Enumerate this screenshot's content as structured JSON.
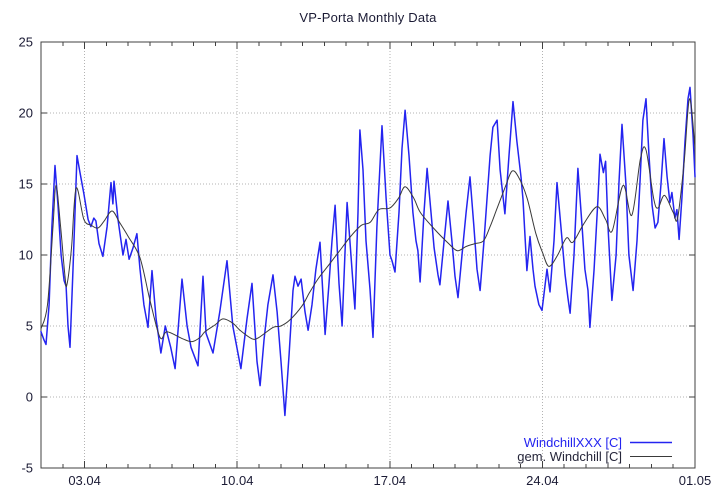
{
  "chart_data": {
    "type": "line",
    "title": "VP-Porta Monthly Data",
    "xlabel": "",
    "ylabel": "",
    "ylim": [
      -5,
      25
    ],
    "xlim_days": [
      0,
      30
    ],
    "grid": true,
    "legend_position": "bottom-right-inside",
    "colors": {
      "text": "#1b1b35",
      "axis": "#404040",
      "grid": "#b3b3b3",
      "background": "#ffffff"
    },
    "y_ticks": [
      {
        "value": -5,
        "label": "-5"
      },
      {
        "value": 0,
        "label": "0"
      },
      {
        "value": 5,
        "label": "5"
      },
      {
        "value": 10,
        "label": "10"
      },
      {
        "value": 15,
        "label": "15"
      },
      {
        "value": 20,
        "label": "20"
      },
      {
        "value": 25,
        "label": "25"
      }
    ],
    "x_ticks": [
      {
        "day": 2,
        "label": "03.04"
      },
      {
        "day": 9,
        "label": "10.04"
      },
      {
        "day": 16,
        "label": "17.04"
      },
      {
        "day": 23,
        "label": "24.04"
      },
      {
        "day": 30,
        "label": "01.05"
      }
    ],
    "x_minor_tick_every_days": 1,
    "series": [
      {
        "name": "WindchillXXX [C]",
        "color": "#2424f0",
        "label_color": "#2424f0",
        "width": 1.5,
        "smooth": false,
        "points": [
          [
            0,
            4.6
          ],
          [
            0.14,
            4.0
          ],
          [
            0.23,
            3.7
          ],
          [
            0.37,
            6.5
          ],
          [
            0.5,
            12.0
          ],
          [
            0.64,
            16.3
          ],
          [
            0.78,
            13.5
          ],
          [
            0.92,
            10.0
          ],
          [
            1.06,
            8.2
          ],
          [
            1.15,
            7.8
          ],
          [
            1.24,
            5.0
          ],
          [
            1.33,
            3.5
          ],
          [
            1.47,
            9.0
          ],
          [
            1.65,
            17.0
          ],
          [
            1.79,
            15.8
          ],
          [
            1.97,
            14.3
          ],
          [
            2.16,
            12.5
          ],
          [
            2.29,
            12.0
          ],
          [
            2.42,
            12.6
          ],
          [
            2.52,
            12.4
          ],
          [
            2.66,
            10.8
          ],
          [
            2.84,
            9.9
          ],
          [
            3.03,
            12.0
          ],
          [
            3.21,
            15.1
          ],
          [
            3.3,
            13.6
          ],
          [
            3.35,
            15.2
          ],
          [
            3.53,
            12.5
          ],
          [
            3.76,
            10.0
          ],
          [
            3.9,
            11.1
          ],
          [
            4.04,
            9.7
          ],
          [
            4.22,
            10.5
          ],
          [
            4.4,
            11.5
          ],
          [
            4.54,
            9.0
          ],
          [
            4.72,
            6.5
          ],
          [
            4.91,
            4.9
          ],
          [
            5.09,
            8.9
          ],
          [
            5.28,
            5.5
          ],
          [
            5.5,
            3.1
          ],
          [
            5.7,
            5.0
          ],
          [
            5.95,
            3.5
          ],
          [
            6.15,
            2.0
          ],
          [
            6.47,
            8.3
          ],
          [
            6.7,
            5.0
          ],
          [
            6.88,
            3.5
          ],
          [
            7.2,
            2.2
          ],
          [
            7.43,
            8.5
          ],
          [
            7.57,
            4.5
          ],
          [
            7.89,
            3.1
          ],
          [
            8.2,
            6.0
          ],
          [
            8.53,
            9.6
          ],
          [
            8.8,
            5.0
          ],
          [
            9.17,
            2.0
          ],
          [
            9.45,
            5.5
          ],
          [
            9.68,
            8.0
          ],
          [
            9.91,
            2.5
          ],
          [
            10.05,
            0.8
          ],
          [
            10.23,
            4.0
          ],
          [
            10.41,
            6.5
          ],
          [
            10.64,
            8.6
          ],
          [
            10.83,
            6.0
          ],
          [
            11.01,
            2.5
          ],
          [
            11.19,
            -1.3
          ],
          [
            11.38,
            3.0
          ],
          [
            11.56,
            7.5
          ],
          [
            11.65,
            8.5
          ],
          [
            11.79,
            7.8
          ],
          [
            11.93,
            8.3
          ],
          [
            12.11,
            6.0
          ],
          [
            12.25,
            4.7
          ],
          [
            12.43,
            6.5
          ],
          [
            12.61,
            9.0
          ],
          [
            12.8,
            10.9
          ],
          [
            12.94,
            7.0
          ],
          [
            13.03,
            4.4
          ],
          [
            13.21,
            8.0
          ],
          [
            13.35,
            11.0
          ],
          [
            13.49,
            13.5
          ],
          [
            13.67,
            8.0
          ],
          [
            13.81,
            5.0
          ],
          [
            13.94,
            10.0
          ],
          [
            14.04,
            13.7
          ],
          [
            14.17,
            11.0
          ],
          [
            14.31,
            8.0
          ],
          [
            14.4,
            6.2
          ],
          [
            14.54,
            13.0
          ],
          [
            14.63,
            18.8
          ],
          [
            14.77,
            16.0
          ],
          [
            14.91,
            11.0
          ],
          [
            15.09,
            7.6
          ],
          [
            15.23,
            4.2
          ],
          [
            15.41,
            12.0
          ],
          [
            15.64,
            19.1
          ],
          [
            15.83,
            14.0
          ],
          [
            16.01,
            10.0
          ],
          [
            16.1,
            9.6
          ],
          [
            16.24,
            8.8
          ],
          [
            16.42,
            13.0
          ],
          [
            16.56,
            17.5
          ],
          [
            16.7,
            20.2
          ],
          [
            16.88,
            17.0
          ],
          [
            17.06,
            13.0
          ],
          [
            17.2,
            11.0
          ],
          [
            17.29,
            10.3
          ],
          [
            17.39,
            8.1
          ],
          [
            17.57,
            13.0
          ],
          [
            17.71,
            16.1
          ],
          [
            17.89,
            13.0
          ],
          [
            18.03,
            10.5
          ],
          [
            18.21,
            8.6
          ],
          [
            18.3,
            7.9
          ],
          [
            18.49,
            11.0
          ],
          [
            18.67,
            13.8
          ],
          [
            18.85,
            11.0
          ],
          [
            18.99,
            8.5
          ],
          [
            19.13,
            7.0
          ],
          [
            19.31,
            10.0
          ],
          [
            19.5,
            13.0
          ],
          [
            19.68,
            15.5
          ],
          [
            19.86,
            12.0
          ],
          [
            20.0,
            9.0
          ],
          [
            20.14,
            7.5
          ],
          [
            20.32,
            11.0
          ],
          [
            20.6,
            17.0
          ],
          [
            20.73,
            19.0
          ],
          [
            20.92,
            19.5
          ],
          [
            21.06,
            16.0
          ],
          [
            21.28,
            12.9
          ],
          [
            21.47,
            17.0
          ],
          [
            21.65,
            20.8
          ],
          [
            21.83,
            18.0
          ],
          [
            22.02,
            15.5
          ],
          [
            22.11,
            13.9
          ],
          [
            22.29,
            8.9
          ],
          [
            22.43,
            11.3
          ],
          [
            22.57,
            9.0
          ],
          [
            22.66,
            7.8
          ],
          [
            22.84,
            6.5
          ],
          [
            22.98,
            6.1
          ],
          [
            23.21,
            9.0
          ],
          [
            23.35,
            7.4
          ],
          [
            23.53,
            11.0
          ],
          [
            23.67,
            15.1
          ],
          [
            23.85,
            12.0
          ],
          [
            24.04,
            8.6
          ],
          [
            24.17,
            7.0
          ],
          [
            24.27,
            5.9
          ],
          [
            24.45,
            10.0
          ],
          [
            24.63,
            16.1
          ],
          [
            24.82,
            12.0
          ],
          [
            24.95,
            9.0
          ],
          [
            25.09,
            7.5
          ],
          [
            25.18,
            4.9
          ],
          [
            25.37,
            9.0
          ],
          [
            25.55,
            14.0
          ],
          [
            25.64,
            17.1
          ],
          [
            25.8,
            15.8
          ],
          [
            25.9,
            16.6
          ],
          [
            26.01,
            12.0
          ],
          [
            26.19,
            6.8
          ],
          [
            26.38,
            10.0
          ],
          [
            26.51,
            15.0
          ],
          [
            26.65,
            19.2
          ],
          [
            26.83,
            15.0
          ],
          [
            26.97,
            10.0
          ],
          [
            27.16,
            7.5
          ],
          [
            27.34,
            11.0
          ],
          [
            27.48,
            15.3
          ],
          [
            27.61,
            19.5
          ],
          [
            27.75,
            21.0
          ],
          [
            27.89,
            17.0
          ],
          [
            28.03,
            13.5
          ],
          [
            28.17,
            11.9
          ],
          [
            28.3,
            12.3
          ],
          [
            28.44,
            15.0
          ],
          [
            28.58,
            18.2
          ],
          [
            28.72,
            15.5
          ],
          [
            28.85,
            13.7
          ],
          [
            28.94,
            14.4
          ],
          [
            29.08,
            12.6
          ],
          [
            29.17,
            13.2
          ],
          [
            29.27,
            11.1
          ],
          [
            29.4,
            14.0
          ],
          [
            29.54,
            18.0
          ],
          [
            29.68,
            21.0
          ],
          [
            29.77,
            21.8
          ],
          [
            29.91,
            18.5
          ],
          [
            30.0,
            15.5
          ]
        ]
      },
      {
        "name": "gem. Windchill [C]",
        "color": "#3a3a3a",
        "label_color": "#26263a",
        "width": 1,
        "smooth": true,
        "points": [
          [
            0,
            4.8
          ],
          [
            0.3,
            6.5
          ],
          [
            0.55,
            12.0
          ],
          [
            0.69,
            14.9
          ],
          [
            0.9,
            12.0
          ],
          [
            1.1,
            8.5
          ],
          [
            1.19,
            7.9
          ],
          [
            1.4,
            10.5
          ],
          [
            1.61,
            14.7
          ],
          [
            1.97,
            12.5
          ],
          [
            2.3,
            12.1
          ],
          [
            2.61,
            11.9
          ],
          [
            2.9,
            12.4
          ],
          [
            3.26,
            13.1
          ],
          [
            3.6,
            12.3
          ],
          [
            4.0,
            11.3
          ],
          [
            4.54,
            9.8
          ],
          [
            5.0,
            6.8
          ],
          [
            5.46,
            4.2
          ],
          [
            5.78,
            4.6
          ],
          [
            6.5,
            4.1
          ],
          [
            6.93,
            3.9
          ],
          [
            7.3,
            4.2
          ],
          [
            7.52,
            4.6
          ],
          [
            8.0,
            5.1
          ],
          [
            8.35,
            5.5
          ],
          [
            8.8,
            5.2
          ],
          [
            9.13,
            4.7
          ],
          [
            9.68,
            4.1
          ],
          [
            10.0,
            4.2
          ],
          [
            10.64,
            4.9
          ],
          [
            11.0,
            5.0
          ],
          [
            11.4,
            5.4
          ],
          [
            11.97,
            6.4
          ],
          [
            12.3,
            7.3
          ],
          [
            12.7,
            8.3
          ],
          [
            13.2,
            9.3
          ],
          [
            13.7,
            10.3
          ],
          [
            14.2,
            11.3
          ],
          [
            14.7,
            12.1
          ],
          [
            15.1,
            12.3
          ],
          [
            15.5,
            13.2
          ],
          [
            16.0,
            13.3
          ],
          [
            16.4,
            14.0
          ],
          [
            16.7,
            14.8
          ],
          [
            17.1,
            14.0
          ],
          [
            17.4,
            13.0
          ],
          [
            18.0,
            11.9
          ],
          [
            18.7,
            10.8
          ],
          [
            19.1,
            10.3
          ],
          [
            19.5,
            10.6
          ],
          [
            19.9,
            10.8
          ],
          [
            20.3,
            11.0
          ],
          [
            20.6,
            12.0
          ],
          [
            20.9,
            13.2
          ],
          [
            21.3,
            14.8
          ],
          [
            21.6,
            15.9
          ],
          [
            21.9,
            15.5
          ],
          [
            22.3,
            14.0
          ],
          [
            22.7,
            11.5
          ],
          [
            23.0,
            10.2
          ],
          [
            23.3,
            9.2
          ],
          [
            23.7,
            10.0
          ],
          [
            24.1,
            11.2
          ],
          [
            24.4,
            10.9
          ],
          [
            24.9,
            12.2
          ],
          [
            25.5,
            13.4
          ],
          [
            25.9,
            12.5
          ],
          [
            26.2,
            11.7
          ],
          [
            26.7,
            14.9
          ],
          [
            27.1,
            12.8
          ],
          [
            27.5,
            16.8
          ],
          [
            27.75,
            17.4
          ],
          [
            28.1,
            14.0
          ],
          [
            28.3,
            13.3
          ],
          [
            28.6,
            14.2
          ],
          [
            29.0,
            13.0
          ],
          [
            29.2,
            12.6
          ],
          [
            29.5,
            16.5
          ],
          [
            29.75,
            21.0
          ],
          [
            30.0,
            17.5
          ]
        ]
      }
    ]
  }
}
